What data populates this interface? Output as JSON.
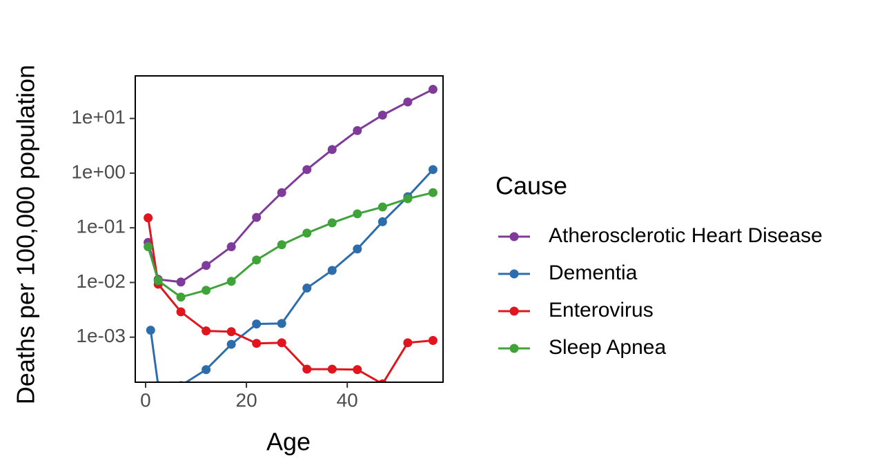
{
  "chart_data": {
    "type": "line",
    "y_label": "Deaths per 100,000 population",
    "x_label": "Age",
    "legend_title": "Cause",
    "legend_position": "right",
    "log_y": true,
    "x": [
      0.5,
      2.5,
      7,
      12,
      17,
      22,
      27,
      32,
      37,
      42,
      47,
      52,
      57
    ],
    "series": [
      {
        "name": "Atherosclerotic Heart Disease",
        "color": "#7f3b9a",
        "values": [
          0.054,
          0.0114,
          0.0102,
          0.0205,
          0.045,
          0.155,
          0.44,
          1.16,
          2.7,
          6.0,
          11.5,
          20,
          34
        ]
      },
      {
        "name": "Dementia",
        "color": "#2e6dab",
        "x": [
          1,
          2.5,
          7,
          12,
          17,
          22,
          27,
          32,
          37,
          42,
          47,
          52,
          57
        ],
        "values": [
          0.00134,
          0.00013,
          0.00013,
          0.000255,
          0.00074,
          0.00174,
          0.00178,
          0.0079,
          0.0166,
          0.041,
          0.129,
          0.37,
          1.16
        ]
      },
      {
        "name": "Enterovirus",
        "color": "#e0151e",
        "values": [
          0.152,
          0.0093,
          0.0029,
          0.0013,
          0.00126,
          0.00077,
          0.00079,
          0.00026,
          0.00026,
          0.000255,
          0.00014,
          0.00079,
          0.00087
        ]
      },
      {
        "name": "Sleep Apnea",
        "color": "#3fa33a",
        "values": [
          0.045,
          0.0108,
          0.0054,
          0.0072,
          0.0105,
          0.0258,
          0.049,
          0.08,
          0.123,
          0.18,
          0.24,
          0.34,
          0.44
        ]
      }
    ],
    "xlim": [
      -2.05,
      59.0
    ],
    "xticks": [
      0,
      20,
      40
    ],
    "ylim": [
      0.00015,
      60
    ],
    "yticks": [
      {
        "value": 10,
        "label": "1e+01"
      },
      {
        "value": 1,
        "label": "1e+00"
      },
      {
        "value": 0.1,
        "label": "1e-01"
      },
      {
        "value": 0.01,
        "label": "1e-02"
      },
      {
        "value": 0.001,
        "label": "1e-03"
      }
    ]
  }
}
